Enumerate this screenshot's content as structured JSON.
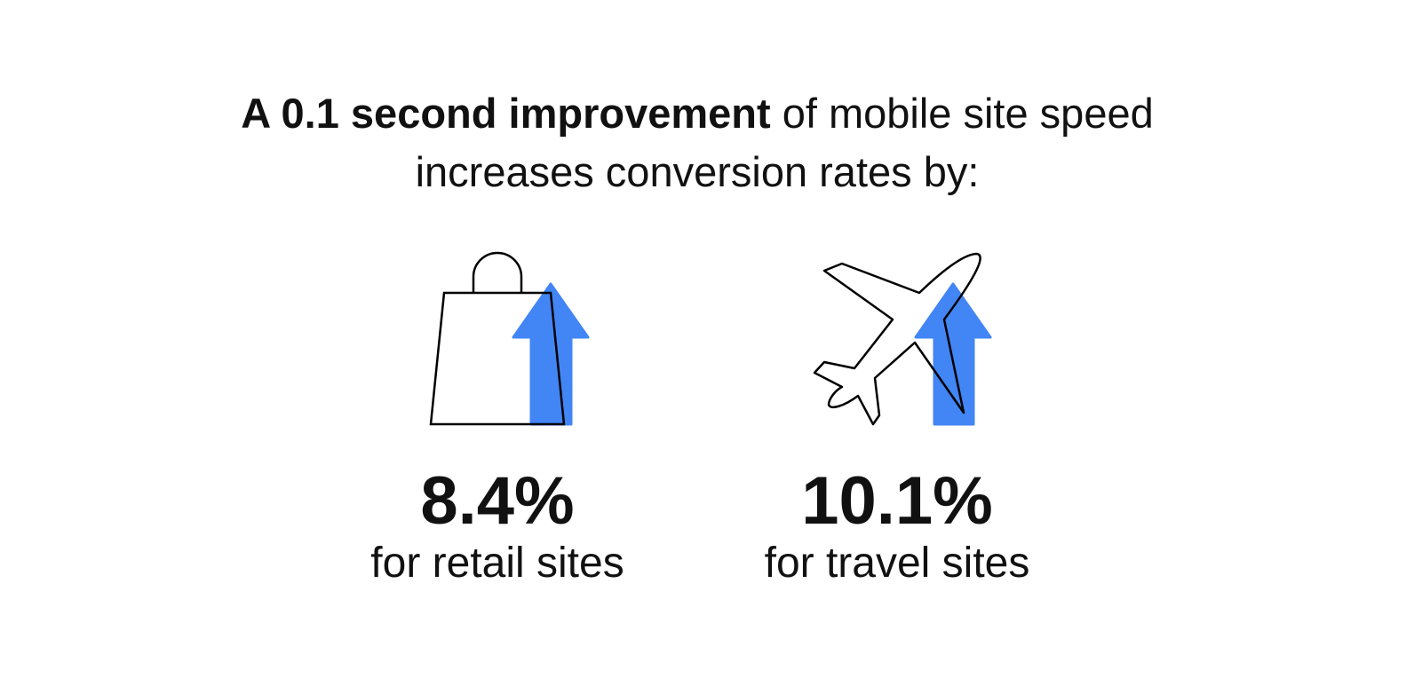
{
  "headline": {
    "bold_part": "A 0.1 second improvement",
    "rest_line1": " of mobile site speed",
    "line2": "increases conversion rates by:"
  },
  "stats": [
    {
      "icon": "shopping-bag-icon",
      "value": "8.4%",
      "label": "for retail sites"
    },
    {
      "icon": "airplane-icon",
      "value": "10.1%",
      "label": "for travel sites"
    }
  ],
  "colors": {
    "accent": "#4285F4",
    "text": "#111111"
  }
}
